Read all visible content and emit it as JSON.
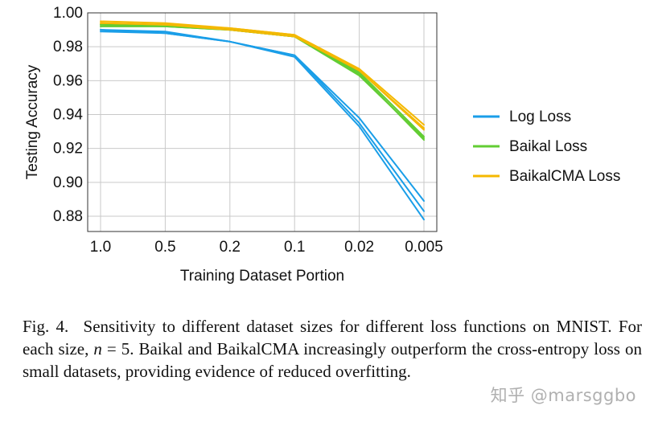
{
  "chart_data": {
    "type": "line",
    "xlabel": "Training Dataset Portion",
    "ylabel": "Testing Accuracy",
    "categories": [
      "1.0",
      "0.5",
      "0.2",
      "0.1",
      "0.02",
      "0.005"
    ],
    "ylim": [
      0.871,
      1.0
    ],
    "yticks": [
      "0.88",
      "0.90",
      "0.92",
      "0.94",
      "0.96",
      "0.98",
      "1.00"
    ],
    "ytick_values": [
      0.88,
      0.9,
      0.92,
      0.94,
      0.96,
      0.98,
      1.0
    ],
    "grid": true,
    "legend_position": "right",
    "series": [
      {
        "name": "Log Loss",
        "color": "#1a9ee8",
        "runs": [
          [
            0.99,
            0.989,
            0.983,
            0.975,
            0.938,
            0.889
          ],
          [
            0.99,
            0.988,
            0.983,
            0.975,
            0.935,
            0.883
          ],
          [
            0.989,
            0.988,
            0.983,
            0.974,
            0.933,
            0.878
          ]
        ]
      },
      {
        "name": "Baikal Loss",
        "color": "#62cd33",
        "runs": [
          [
            0.993,
            0.993,
            0.99,
            0.986,
            0.965,
            0.927
          ],
          [
            0.992,
            0.992,
            0.99,
            0.986,
            0.964,
            0.925
          ],
          [
            0.993,
            0.992,
            0.99,
            0.986,
            0.963,
            0.926
          ]
        ]
      },
      {
        "name": "BaikalCMA Loss",
        "color": "#f5b800",
        "runs": [
          [
            0.995,
            0.994,
            0.991,
            0.987,
            0.967,
            0.934
          ],
          [
            0.994,
            0.993,
            0.99,
            0.986,
            0.966,
            0.932
          ],
          [
            0.994,
            0.993,
            0.991,
            0.987,
            0.966,
            0.931
          ]
        ]
      }
    ]
  },
  "caption": {
    "label": "Fig. 4.",
    "text_part1": "Sensitivity to different dataset sizes for different loss functions on MNIST. For each size, ",
    "math_symbol": "n",
    "math_eq": " = 5",
    "text_part2": ". Baikal and BaikalCMA increasingly outperform the cross-entropy loss on small datasets, providing evidence of reduced overfitting."
  },
  "watermark": "知乎 @marsggbo"
}
